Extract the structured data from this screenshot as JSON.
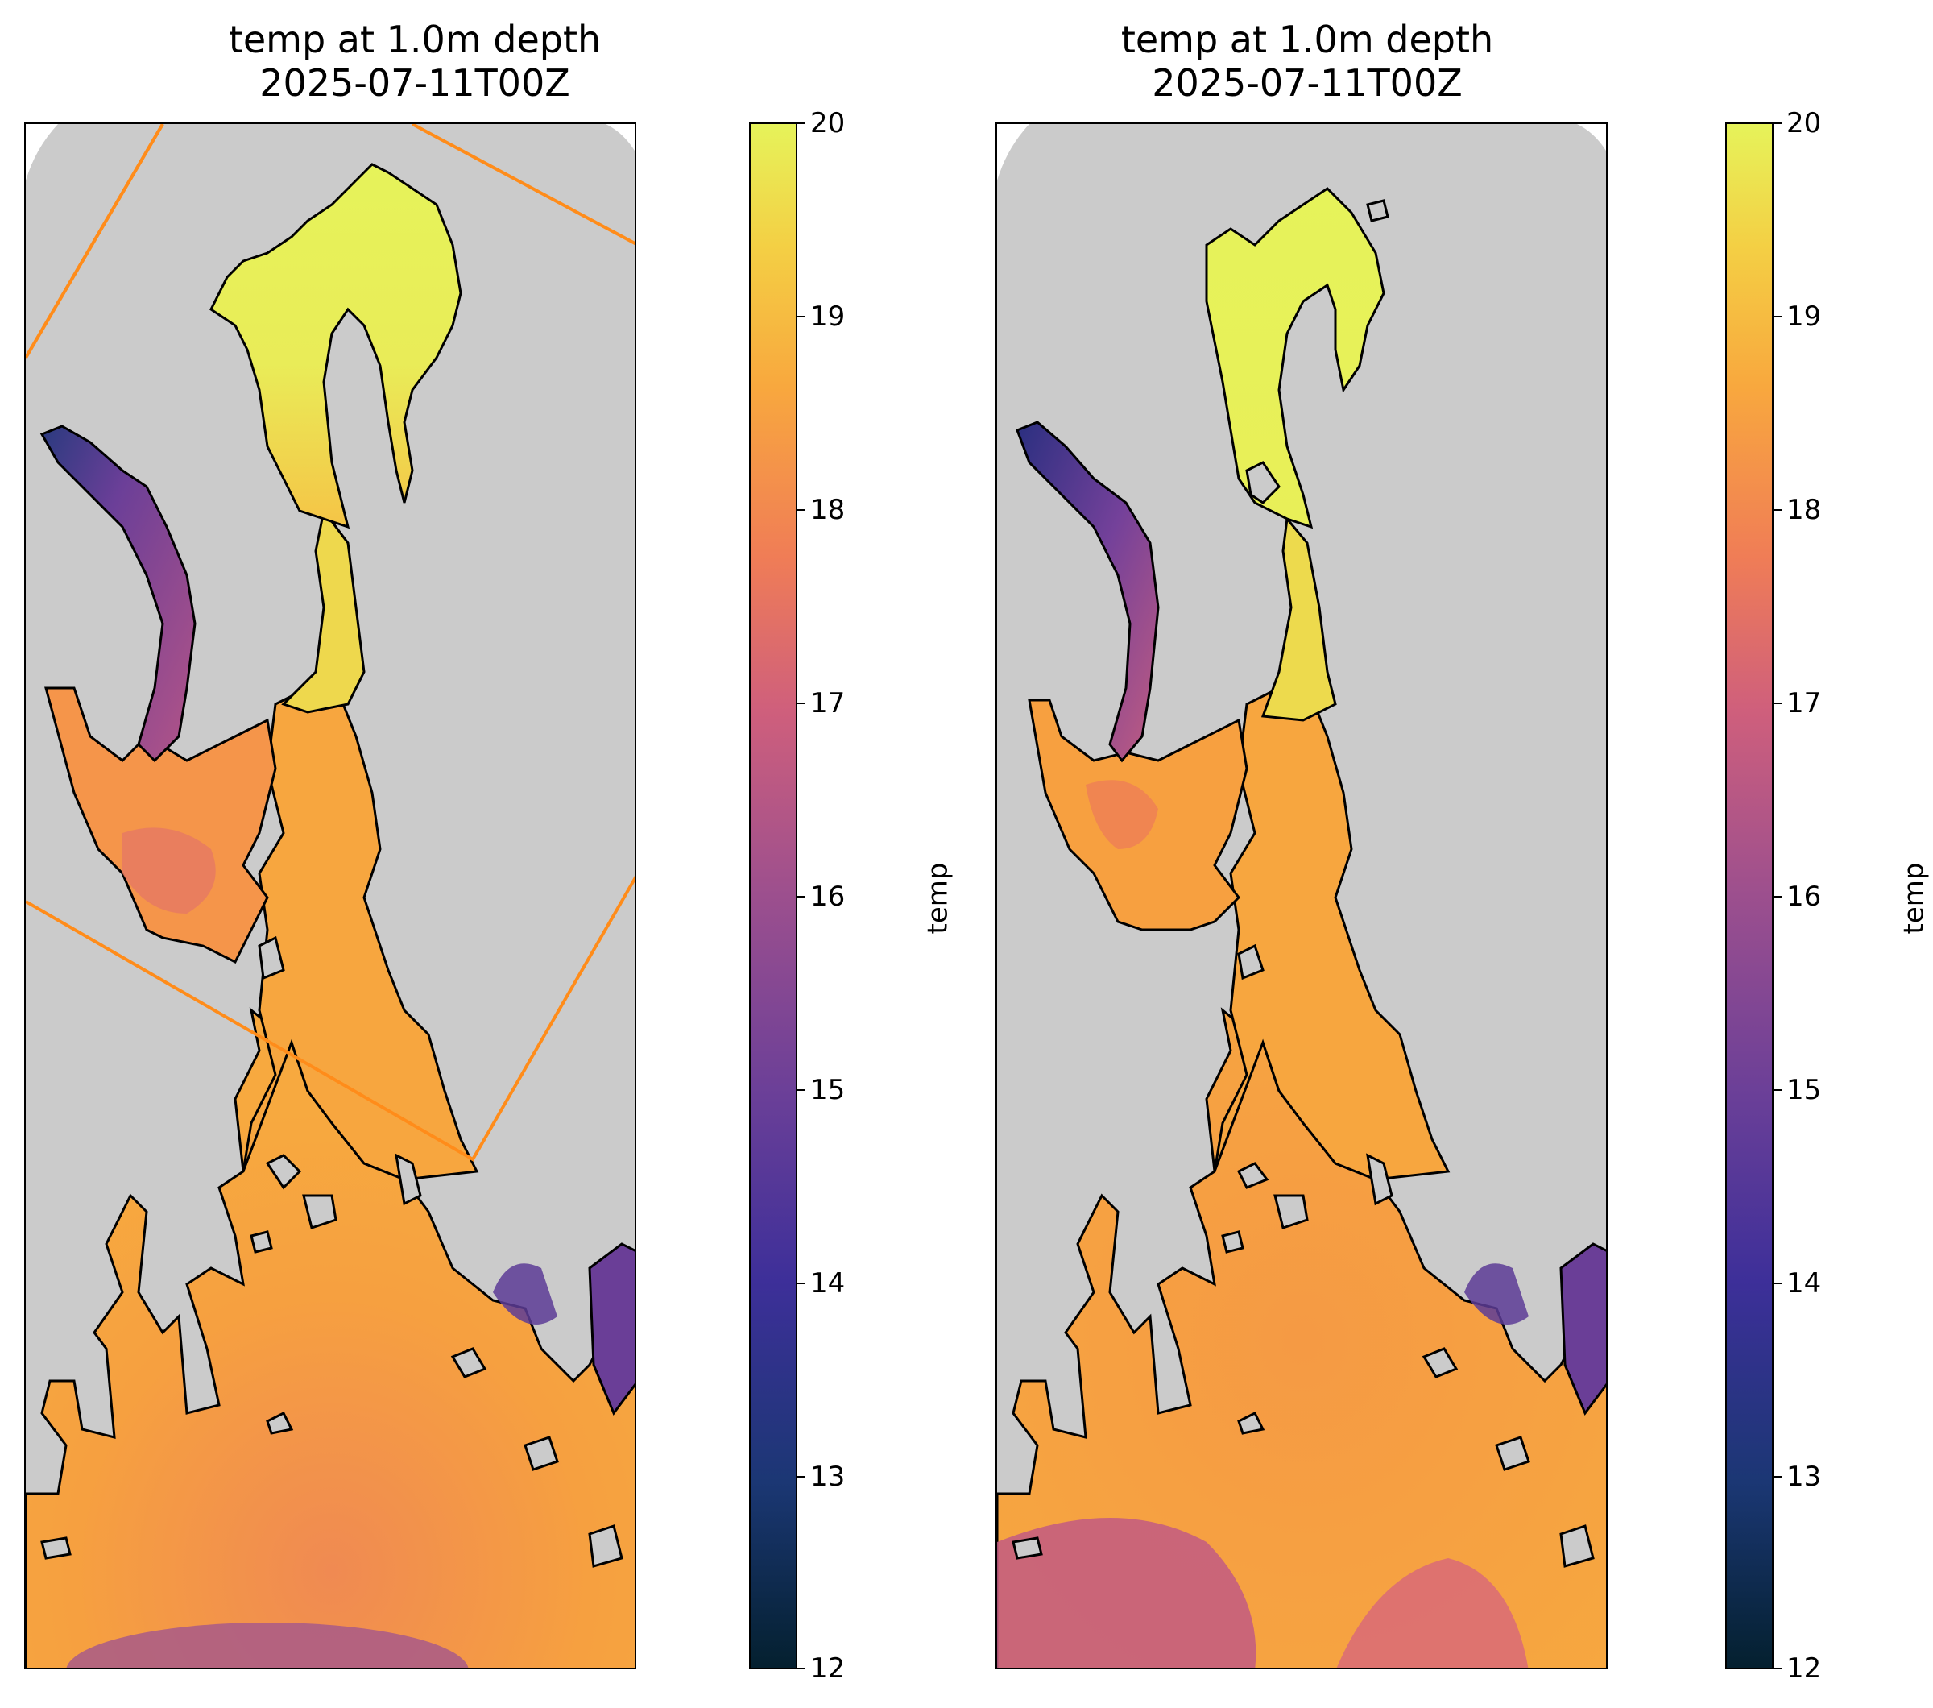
{
  "panels": [
    {
      "id": "left",
      "title_line1": "temp at 1.0m depth",
      "title_line2": "2025-07-11T00Z",
      "colorbar_label": "temp",
      "shows_subdomain_box": true,
      "subdomain_box_color": "#ff8c1a"
    },
    {
      "id": "right",
      "title_line1": "temp at 1.0m depth",
      "title_line2": "2025-07-11T00Z",
      "colorbar_label": "temp",
      "shows_subdomain_box": false
    }
  ],
  "colorbar": {
    "min": 12,
    "max": 20,
    "ticks": [
      "20",
      "19",
      "18",
      "17",
      "16",
      "15",
      "14",
      "13",
      "12"
    ],
    "colormap": "thermal",
    "stops": [
      "#04202f",
      "#1b3774",
      "#3d2f99",
      "#6a3f98",
      "#9c4f8e",
      "#cf5f7c",
      "#f07d56",
      "#f8a83e",
      "#f4cf44",
      "#e6f35a"
    ]
  },
  "colors": {
    "land": "#cbcbcb",
    "outside": "#ffffff",
    "coast": "#000000"
  }
}
